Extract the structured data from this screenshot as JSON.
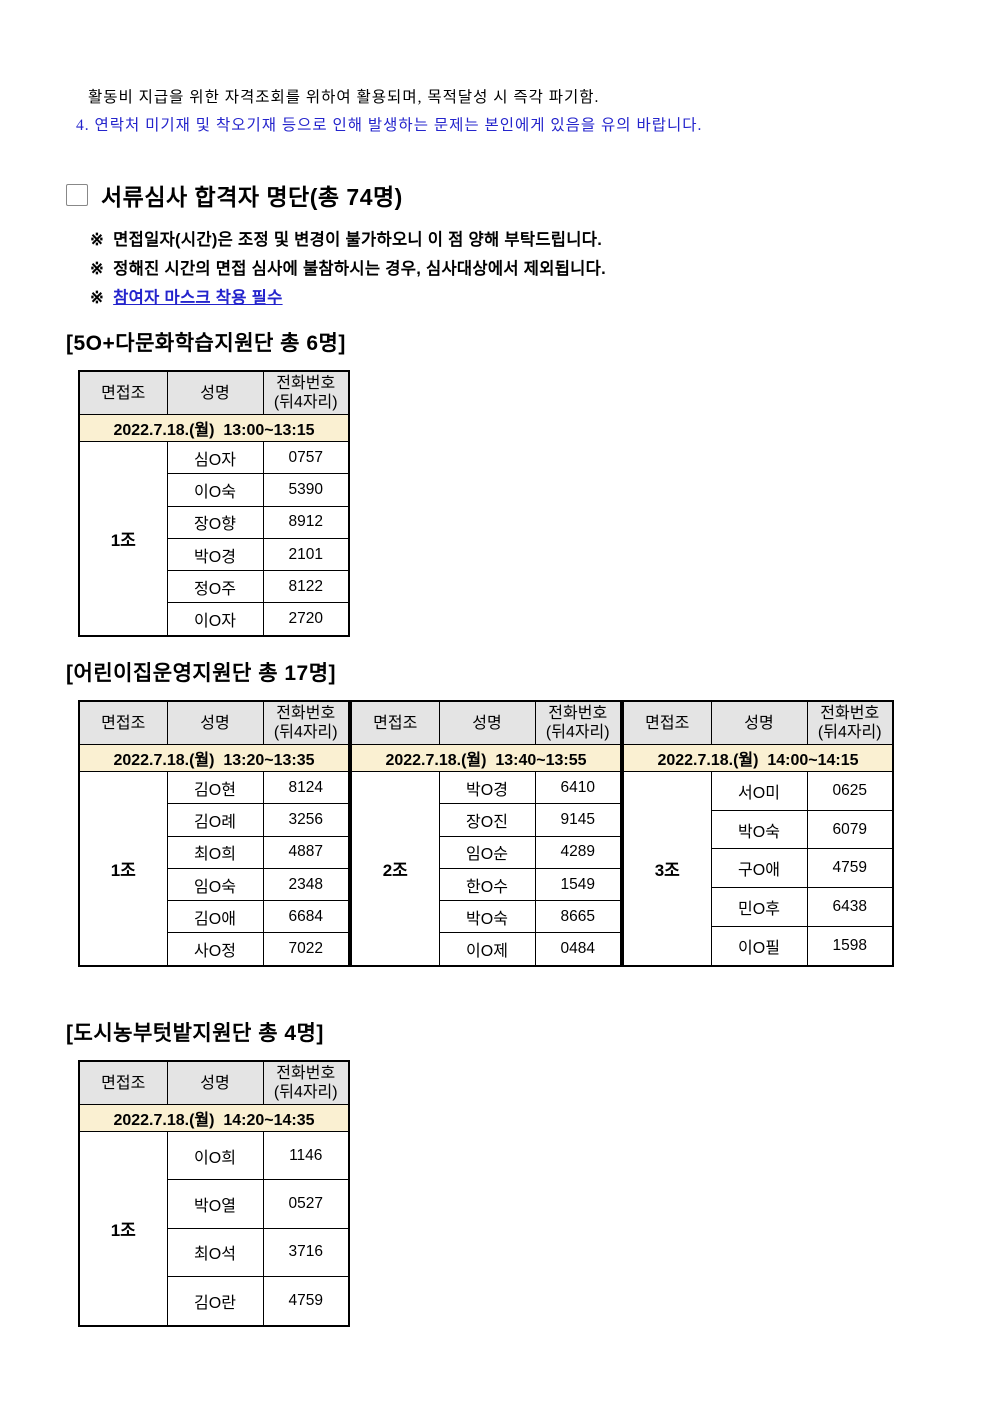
{
  "colors": {
    "accent_blue": "#2424cc",
    "table_border": "#000000",
    "table_header_bg": "#e4e4e4",
    "date_row_bg": "#faf0d2"
  },
  "intro": {
    "line1": "활동비 지급을 위한 자격조회를 위하여 활용되며, 목적달성 시 즉각 파기함.",
    "line2": "4. 연락처 미기재 및 착오기재 등으로 인해 발생하는 문제는 본인에게 있음을 유의 바랍니다."
  },
  "header": {
    "checkbox_icon": "empty-square",
    "title": "서류심사 합격자 명단(총 74명)"
  },
  "notices": [
    {
      "marker": "※",
      "text": "면접일자(시간)은 조정 및 변경이 불가하오니 이 점 양해 부탁드립니다.",
      "style": "black"
    },
    {
      "marker": "※",
      "text": "정해진 시간의 면접 심사에 불참하시는 경우, 심사대상에서 제외됩니다.",
      "style": "black"
    },
    {
      "marker": "※",
      "text": "참여자 마스크 착용 필수",
      "style": "blue"
    }
  ],
  "table_headers": {
    "col1": "면접조",
    "col2": "성명",
    "col3": "전화번호\n(뒤4자리)"
  },
  "sections": [
    {
      "title": "[5O+다문화학습지원단 총 6명]",
      "tables": [
        {
          "date": "2022.7.18.(월)  13:00~13:15",
          "group": "1조",
          "rows": [
            [
              "심O자",
              "0757"
            ],
            [
              "이O숙",
              "5390"
            ],
            [
              "장O향",
              "8912"
            ],
            [
              "박O경",
              "2101"
            ],
            [
              "정O주",
              "8122"
            ],
            [
              "이O자",
              "2720"
            ]
          ]
        }
      ]
    },
    {
      "title": "[어린이집운영지원단 총 17명]",
      "tables": [
        {
          "date": "2022.7.18.(월)  13:20~13:35",
          "group": "1조",
          "rows": [
            [
              "김O현",
              "8124"
            ],
            [
              "김O례",
              "3256"
            ],
            [
              "최O희",
              "4887"
            ],
            [
              "임O숙",
              "2348"
            ],
            [
              "김O애",
              "6684"
            ],
            [
              "사O정",
              "7022"
            ]
          ]
        },
        {
          "date": "2022.7.18.(월)  13:40~13:55",
          "group": "2조",
          "rows": [
            [
              "박O경",
              "6410"
            ],
            [
              "장O진",
              "9145"
            ],
            [
              "임O순",
              "4289"
            ],
            [
              "한O수",
              "1549"
            ],
            [
              "박O숙",
              "8665"
            ],
            [
              "이O제",
              "0484"
            ]
          ]
        },
        {
          "date": "2022.7.18.(월)  14:00~14:15",
          "group": "3조",
          "rows": [
            [
              "서O미",
              "0625"
            ],
            [
              "박O숙",
              "6079"
            ],
            [
              "구O애",
              "4759"
            ],
            [
              "민O후",
              "6438"
            ],
            [
              "이O필",
              "1598"
            ]
          ]
        }
      ]
    },
    {
      "title": "[도시농부텃밭지원단 총 4명]",
      "tables": [
        {
          "date": "2022.7.18.(월)  14:20~14:35",
          "group": "1조",
          "rows": [
            [
              "이O희",
              "1146"
            ],
            [
              "박O열",
              "0527"
            ],
            [
              "최O석",
              "3716"
            ],
            [
              "김O란",
              "4759"
            ]
          ]
        }
      ]
    }
  ]
}
